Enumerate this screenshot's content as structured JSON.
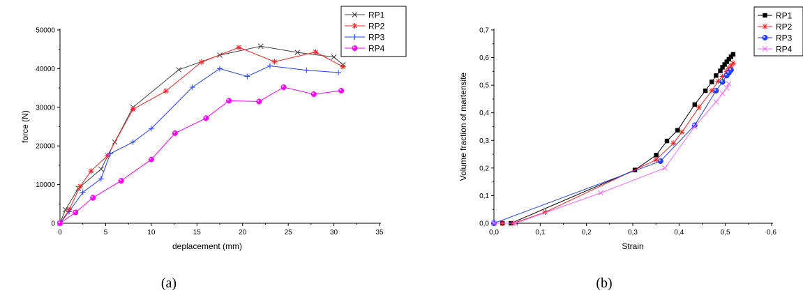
{
  "chart_data": [
    {
      "type": "line",
      "xlabel": "deplacement (mm)",
      "ylabel": "force (N)",
      "xlim": [
        0,
        35
      ],
      "ylim": [
        0,
        50000
      ],
      "xticks": [
        "0",
        "5",
        "10",
        "15",
        "20",
        "25",
        "30",
        "35"
      ],
      "yticks": [
        "0",
        "10000",
        "20000",
        "30000",
        "40000",
        "50000"
      ],
      "grid": false,
      "legend": "top-right",
      "caption": "(a)",
      "series": [
        {
          "name": "RP1",
          "color": "#404040",
          "marker": "x",
          "x": [
            0,
            0.6,
            2,
            4.5,
            6,
            8,
            13,
            17.5,
            22,
            26,
            30,
            31
          ],
          "y": [
            0,
            3500,
            9000,
            14000,
            21000,
            30000,
            39700,
            43500,
            45800,
            44200,
            43000,
            41000
          ]
        },
        {
          "name": "RP2",
          "color": "#ff2020",
          "marker": "star",
          "x": [
            0,
            1,
            2.2,
            3.4,
            5.2,
            8,
            11.6,
            15.5,
            19.6,
            23.5,
            28,
            31
          ],
          "y": [
            0,
            3500,
            9500,
            13500,
            17500,
            29500,
            34200,
            41700,
            45500,
            41800,
            44300,
            40500
          ]
        },
        {
          "name": "RP3",
          "color": "#2040ff",
          "marker": "plus",
          "x": [
            0,
            1,
            2.5,
            4.5,
            5.5,
            8,
            10,
            14.5,
            17.5,
            20.5,
            23,
            27,
            30.5
          ],
          "y": [
            0,
            3000,
            8000,
            11500,
            18000,
            21000,
            24500,
            35200,
            40000,
            38000,
            40700,
            39600,
            39000
          ]
        },
        {
          "name": "RP4",
          "color": "#ff00ff",
          "marker": "ball",
          "x": [
            0,
            1.7,
            3.6,
            6.7,
            10,
            12.6,
            16,
            18.5,
            21.8,
            24.5,
            27.8,
            30.8
          ],
          "y": [
            0,
            2800,
            6600,
            11000,
            16500,
            23300,
            27200,
            31700,
            31500,
            35200,
            33400,
            34300
          ]
        }
      ]
    },
    {
      "type": "line",
      "xlabel": "Strain",
      "ylabel": "Volume fraction of martensite",
      "xlim": [
        0,
        0.65
      ],
      "ylim": [
        0,
        0.7
      ],
      "xticks": [
        "0,0",
        "0,1",
        "0,2",
        "0,3",
        "0,4",
        "0,5",
        "0,6"
      ],
      "yticks": [
        "0,0",
        "0,1",
        "0,2",
        "0,3",
        "0,4",
        "0,5",
        "0,6",
        "0,7"
      ],
      "grid": false,
      "legend": "top-right",
      "caption": "(b)",
      "series": [
        {
          "name": "RP1",
          "color": "#000000",
          "marker": "square",
          "x": [
            0,
            0.02,
            0.04,
            0.33,
            0.38,
            0.405,
            0.43,
            0.47,
            0.495,
            0.51,
            0.52,
            0.53,
            0.535,
            0.54,
            0.545,
            0.55,
            0.555,
            0.56
          ],
          "y": [
            0,
            0,
            0,
            0.193,
            0.247,
            0.298,
            0.337,
            0.43,
            0.48,
            0.512,
            0.535,
            0.552,
            0.565,
            0.575,
            0.585,
            0.594,
            0.603,
            0.612
          ]
        },
        {
          "name": "RP2",
          "color": "#ff2020",
          "marker": "star",
          "x": [
            0,
            0.02,
            0.045,
            0.12,
            0.38,
            0.42,
            0.44,
            0.48,
            0.51,
            0.525,
            0.535,
            0.545,
            0.55,
            0.555,
            0.56
          ],
          "y": [
            0,
            0,
            0,
            0.04,
            0.23,
            0.29,
            0.33,
            0.42,
            0.48,
            0.515,
            0.532,
            0.55,
            0.56,
            0.57,
            0.58
          ]
        },
        {
          "name": "RP3",
          "color": "#2040ff",
          "marker": "ball",
          "x": [
            0,
            0.39,
            0.47,
            0.52,
            0.535,
            0.545,
            0.55,
            0.555
          ],
          "y": [
            0,
            0.225,
            0.355,
            0.48,
            0.512,
            0.535,
            0.545,
            0.555
          ]
        },
        {
          "name": "RP4",
          "color": "#ff66ff",
          "marker": "x",
          "x": [
            0,
            0.05,
            0.25,
            0.4,
            0.47,
            0.52,
            0.535,
            0.545,
            0.55
          ],
          "y": [
            0,
            0,
            0.11,
            0.2,
            0.35,
            0.44,
            0.47,
            0.49,
            0.505
          ]
        }
      ]
    }
  ]
}
